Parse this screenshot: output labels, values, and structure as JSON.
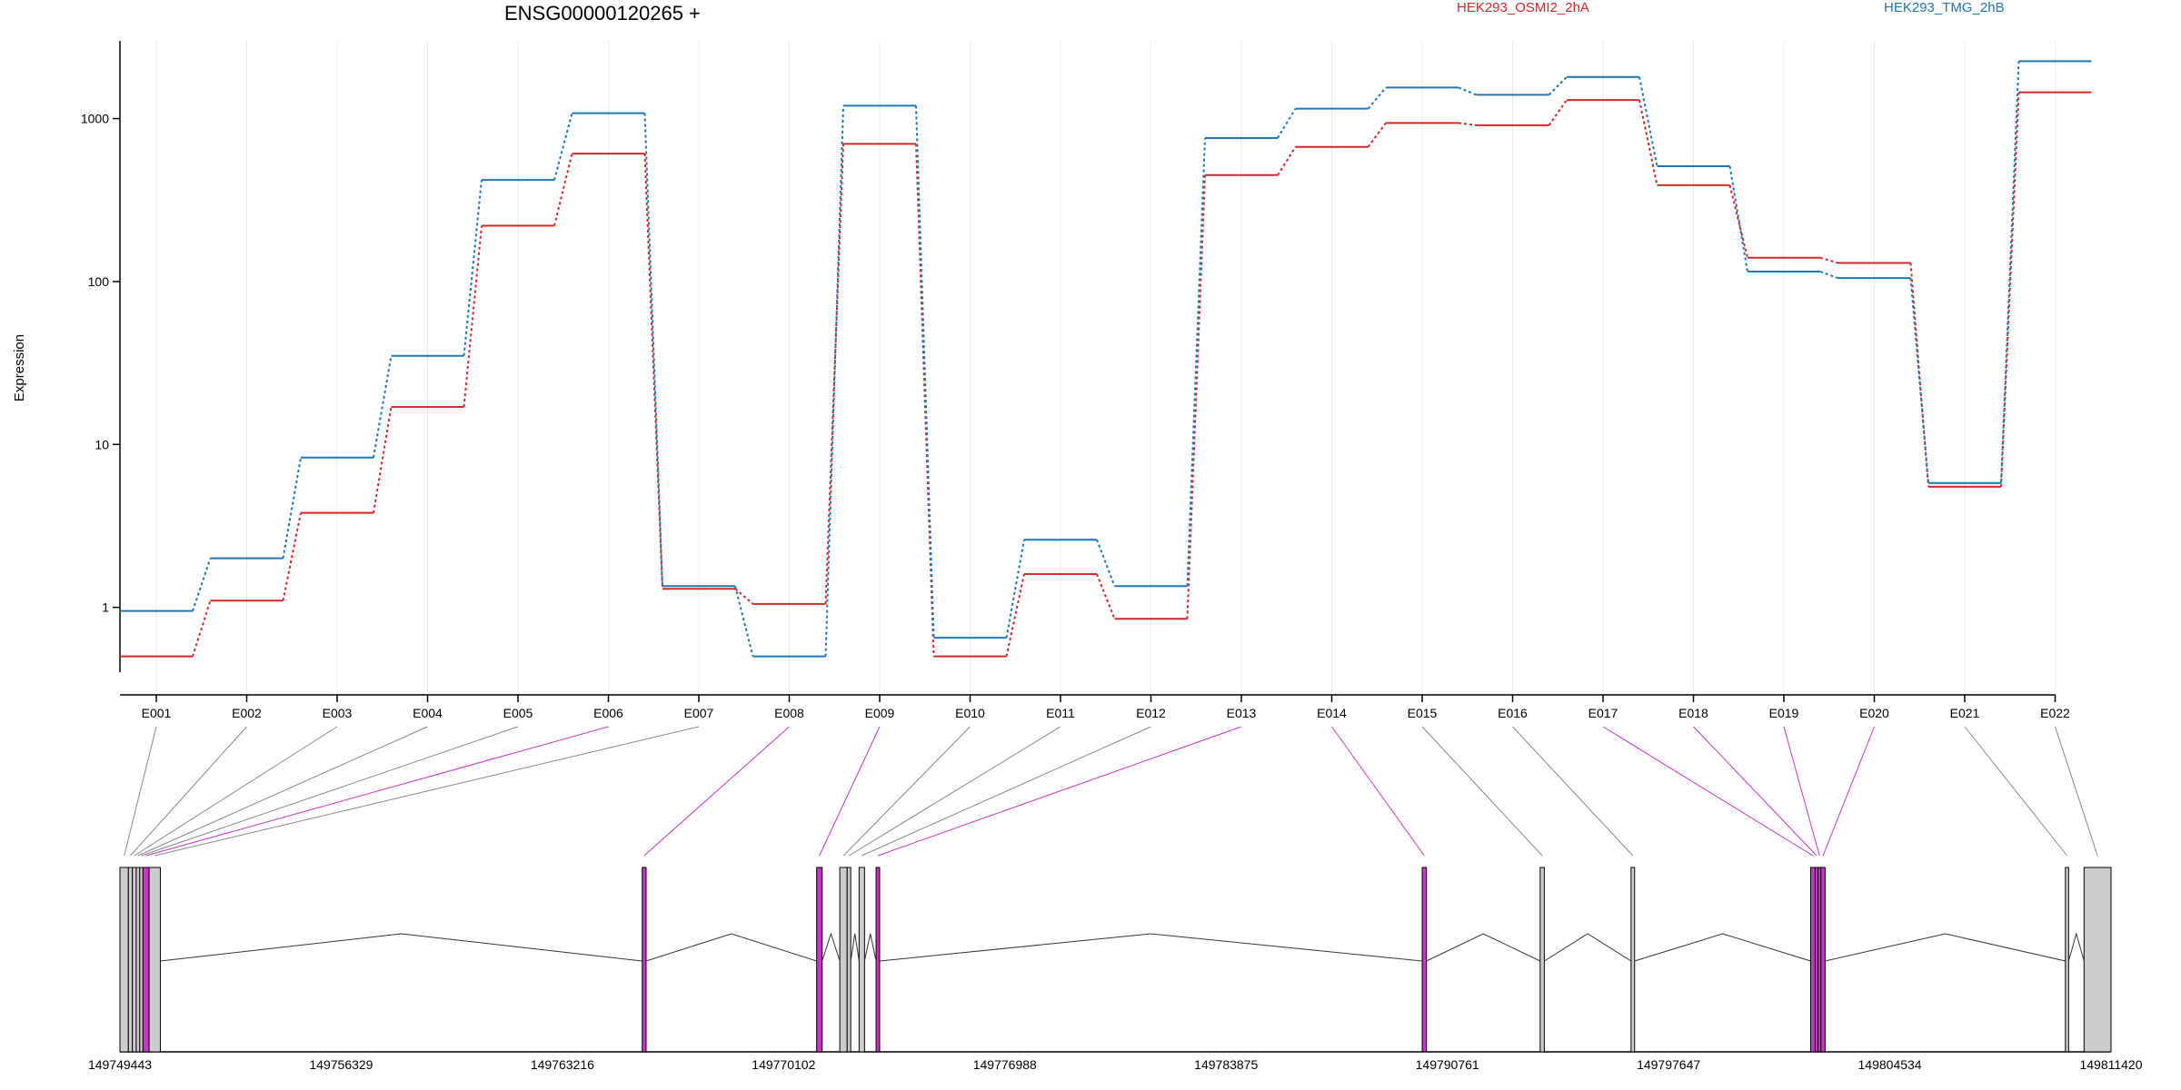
{
  "chart_data": {
    "type": "line",
    "title": "ENSG00000120265 +",
    "ylabel": "Expression",
    "xlabel": "",
    "y_scale": "log",
    "ylim": [
      0.4,
      3000
    ],
    "grid": "vertical",
    "legend_placement": "top",
    "categories": [
      "E001",
      "E002",
      "E003",
      "E004",
      "E005",
      "E006",
      "E007",
      "E008",
      "E009",
      "E010",
      "E011",
      "E012",
      "E013",
      "E014",
      "E015",
      "E016",
      "E017",
      "E018",
      "E019",
      "E020",
      "E021",
      "E022"
    ],
    "y_ticks": [
      1,
      10,
      100,
      1000
    ],
    "y_tick_labels": [
      "1",
      "10",
      "100",
      "1000"
    ],
    "series": [
      {
        "name": "HEK293_OSMI2_2hA",
        "color": "#d62728",
        "values": [
          0.5,
          1.1,
          3.8,
          17,
          220,
          610,
          1.3,
          1.05,
          700,
          0.5,
          1.6,
          0.85,
          450,
          670,
          940,
          910,
          1300,
          390,
          140,
          130,
          5.5,
          1450
        ]
      },
      {
        "name": "HEK293_TMG_2hB",
        "color": "#1f77b4",
        "values": [
          0.95,
          2.0,
          8.3,
          35,
          420,
          1080,
          1.35,
          0.5,
          1200,
          0.65,
          2.6,
          1.35,
          760,
          1150,
          1550,
          1400,
          1800,
          510,
          115,
          105,
          5.8,
          2250
        ]
      }
    ],
    "gene_model": {
      "coordinate_labels": [
        "149749443",
        "149756329",
        "149763216",
        "149770102",
        "149776988",
        "149783875",
        "149790761",
        "149797647",
        "149804534",
        "149811420"
      ],
      "range": [
        149749443,
        149811420
      ],
      "highlight_color": "#cc33cc",
      "exon_color": "#cccccc",
      "exons": [
        {
          "id": "E001",
          "start": 149749443,
          "end": 149749706,
          "highlight": false
        },
        {
          "id": "E002",
          "start": 149749706,
          "end": 149749830,
          "highlight": false
        },
        {
          "id": "E003",
          "start": 149749830,
          "end": 149749950,
          "highlight": false
        },
        {
          "id": "E004",
          "start": 149749950,
          "end": 149750060,
          "highlight": false
        },
        {
          "id": "E005",
          "start": 149750060,
          "end": 149750160,
          "highlight": false
        },
        {
          "id": "E006",
          "start": 149750160,
          "end": 149750350,
          "highlight": true
        },
        {
          "id": "E007",
          "start": 149750350,
          "end": 149750700,
          "highlight": false
        },
        {
          "id": "E008",
          "start": 149765700,
          "end": 149765820,
          "highlight": true
        },
        {
          "id": "E009",
          "start": 149771130,
          "end": 149771300,
          "highlight": true
        },
        {
          "id": "E010",
          "start": 149771850,
          "end": 149772080,
          "highlight": false
        },
        {
          "id": "E011",
          "start": 149772080,
          "end": 149772190,
          "highlight": false
        },
        {
          "id": "E012",
          "start": 149772450,
          "end": 149772620,
          "highlight": false
        },
        {
          "id": "E013",
          "start": 149772980,
          "end": 149773090,
          "highlight": true
        },
        {
          "id": "E014",
          "start": 149789980,
          "end": 149790110,
          "highlight": true
        },
        {
          "id": "E015",
          "start": 149793650,
          "end": 149793780,
          "highlight": false
        },
        {
          "id": "E016",
          "start": 149796480,
          "end": 149796590,
          "highlight": false
        },
        {
          "id": "E017",
          "start": 149802070,
          "end": 149802210,
          "highlight": true
        },
        {
          "id": "E018",
          "start": 149802210,
          "end": 149802300,
          "highlight": true
        },
        {
          "id": "E019",
          "start": 149802300,
          "end": 149802390,
          "highlight": true
        },
        {
          "id": "E020",
          "start": 149802390,
          "end": 149802520,
          "highlight": true
        },
        {
          "id": "E021",
          "start": 149810000,
          "end": 149810100,
          "highlight": false
        },
        {
          "id": "E022",
          "start": 149810580,
          "end": 149811420,
          "highlight": false
        }
      ]
    }
  }
}
